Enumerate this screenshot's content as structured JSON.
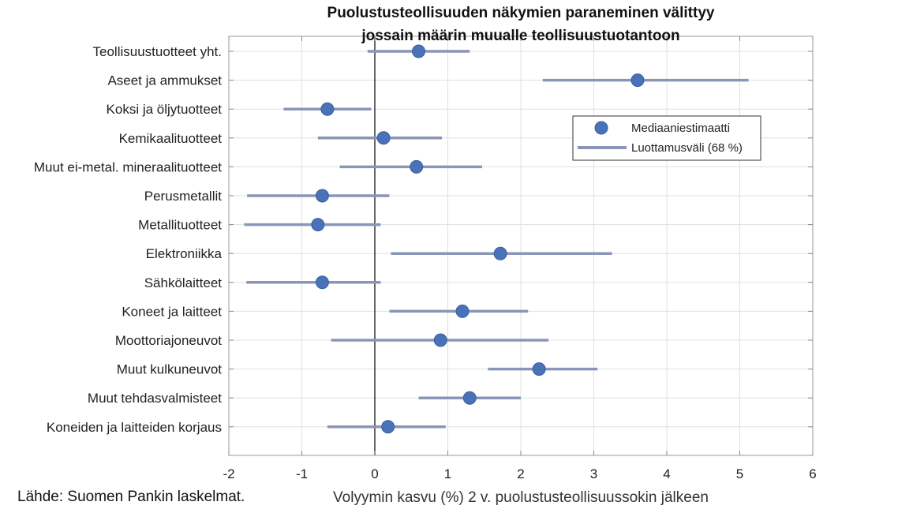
{
  "chart_data": {
    "type": "scatter",
    "orientation": "horizontal",
    "title": [
      "Puolustusteollisuuden näkymien paraneminen välittyy",
      "jossain määrin muualle teollisuustuotantoon"
    ],
    "xlabel": "Volyymin kasvu (%) 2 v. puolustusteollisuussokin jälkeen",
    "ylabel": "",
    "xlim": [
      -2,
      6
    ],
    "xticks": [
      -2,
      -1,
      0,
      1,
      2,
      3,
      4,
      5,
      6
    ],
    "grid": true,
    "zero_line": 0,
    "legend": {
      "position": "top-right",
      "entries": [
        {
          "name": "Mediaaniestimaatti",
          "marker": "circle",
          "color": "#4a72b8"
        },
        {
          "name": "Luottamusväli (68 %)",
          "marker": "line",
          "color": "#8a96b8"
        }
      ]
    },
    "categories": [
      "Teollisuustuotteet yht.",
      "Aseet ja ammukset",
      "Koksi ja öljytuotteet",
      "Kemikaalituotteet",
      "Muut ei-metal. mineraalituotteet",
      "Perusmetallit",
      "Metallituotteet",
      "Elektroniikka",
      "Sähkölaitteet",
      "Koneet ja laitteet",
      "Moottoriajoneuvot",
      "Muut kulkuneuvot",
      "Muut tehdasvalmisteet",
      "Koneiden ja laitteiden korjaus"
    ],
    "series": [
      {
        "name": "Mediaaniestimaatti",
        "values": [
          0.6,
          3.6,
          -0.65,
          0.12,
          0.57,
          -0.72,
          -0.78,
          1.72,
          -0.72,
          1.2,
          0.9,
          2.25,
          1.3,
          0.18
        ]
      },
      {
        "name": "Luottamusväli (68 %) alaraja",
        "values": [
          -0.1,
          2.3,
          -1.25,
          -0.78,
          -0.48,
          -1.75,
          -1.79,
          0.22,
          -1.76,
          0.2,
          -0.6,
          1.55,
          0.6,
          -0.65
        ]
      },
      {
        "name": "Luottamusväli (68 %) yläraja",
        "values": [
          1.3,
          5.12,
          -0.05,
          0.92,
          1.47,
          0.2,
          0.08,
          3.25,
          0.08,
          2.1,
          2.38,
          3.05,
          2.0,
          0.97
        ]
      }
    ]
  },
  "colors": {
    "marker": "#4a72b8",
    "marker_edge": "#3a5f9e",
    "interval": "#8a96b8",
    "grid": "#e0e0e0",
    "zero_line": "#333333"
  },
  "source": "Lähde: Suomen Pankin laskelmat."
}
